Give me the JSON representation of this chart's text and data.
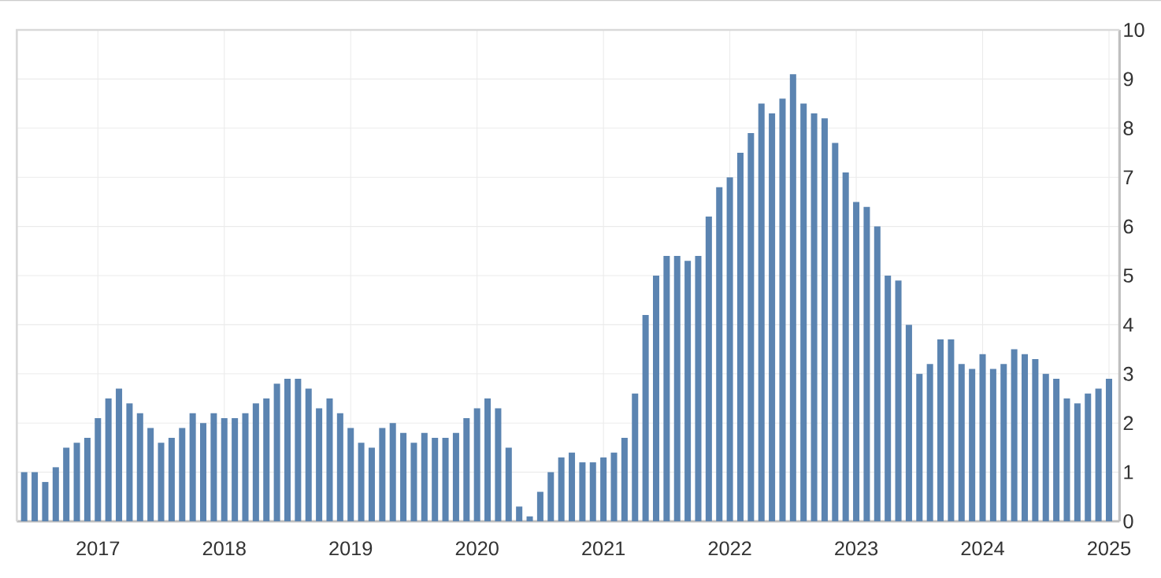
{
  "chart_data": {
    "type": "bar",
    "x": [
      "2016-06",
      "2016-07",
      "2016-08",
      "2016-09",
      "2016-10",
      "2016-11",
      "2016-12",
      "2017-01",
      "2017-02",
      "2017-03",
      "2017-04",
      "2017-05",
      "2017-06",
      "2017-07",
      "2017-08",
      "2017-09",
      "2017-10",
      "2017-11",
      "2017-12",
      "2018-01",
      "2018-02",
      "2018-03",
      "2018-04",
      "2018-05",
      "2018-06",
      "2018-07",
      "2018-08",
      "2018-09",
      "2018-10",
      "2018-11",
      "2018-12",
      "2019-01",
      "2019-02",
      "2019-03",
      "2019-04",
      "2019-05",
      "2019-06",
      "2019-07",
      "2019-08",
      "2019-09",
      "2019-10",
      "2019-11",
      "2019-12",
      "2020-01",
      "2020-02",
      "2020-03",
      "2020-04",
      "2020-05",
      "2020-06",
      "2020-07",
      "2020-08",
      "2020-09",
      "2020-10",
      "2020-11",
      "2020-12",
      "2021-01",
      "2021-02",
      "2021-03",
      "2021-04",
      "2021-05",
      "2021-06",
      "2021-07",
      "2021-08",
      "2021-09",
      "2021-10",
      "2021-11",
      "2021-12",
      "2022-01",
      "2022-02",
      "2022-03",
      "2022-04",
      "2022-05",
      "2022-06",
      "2022-07",
      "2022-08",
      "2022-09",
      "2022-10",
      "2022-11",
      "2022-12",
      "2023-01",
      "2023-02",
      "2023-03",
      "2023-04",
      "2023-05",
      "2023-06",
      "2023-07",
      "2023-08",
      "2023-09",
      "2023-10",
      "2023-11",
      "2023-12",
      "2024-01",
      "2024-02",
      "2024-03",
      "2024-04",
      "2024-05",
      "2024-06",
      "2024-07",
      "2024-08",
      "2024-09",
      "2024-10",
      "2024-11",
      "2024-12",
      "2025-01"
    ],
    "values": [
      1.0,
      1.0,
      0.8,
      1.1,
      1.5,
      1.6,
      1.7,
      2.1,
      2.5,
      2.7,
      2.4,
      2.2,
      1.9,
      1.6,
      1.7,
      1.9,
      2.2,
      2.0,
      2.2,
      2.1,
      2.1,
      2.2,
      2.4,
      2.5,
      2.8,
      2.9,
      2.9,
      2.7,
      2.3,
      2.5,
      2.2,
      1.9,
      1.6,
      1.5,
      1.9,
      2.0,
      1.8,
      1.6,
      1.8,
      1.7,
      1.7,
      1.8,
      2.1,
      2.3,
      2.5,
      2.3,
      1.5,
      0.3,
      0.1,
      0.6,
      1.0,
      1.3,
      1.4,
      1.2,
      1.2,
      1.3,
      1.4,
      1.7,
      2.6,
      4.2,
      5.0,
      5.4,
      5.4,
      5.3,
      5.4,
      6.2,
      6.8,
      7.0,
      7.5,
      7.9,
      8.5,
      8.3,
      8.6,
      9.1,
      8.5,
      8.3,
      8.2,
      7.7,
      7.1,
      6.5,
      6.4,
      6.0,
      5.0,
      4.9,
      4.0,
      3.0,
      3.2,
      3.7,
      3.7,
      3.2,
      3.1,
      3.4,
      3.1,
      3.2,
      3.5,
      3.4,
      3.3,
      3.0,
      2.9,
      2.5,
      2.4,
      2.6,
      2.7,
      2.9
    ],
    "color": "#5b84b1",
    "xlim": [
      "2016-05-10",
      "2025-02-01"
    ],
    "xticks": [
      "2017",
      "2018",
      "2019",
      "2020",
      "2021",
      "2022",
      "2023",
      "2024",
      "2025"
    ],
    "ylim": [
      0,
      10
    ],
    "yticks": [
      0,
      1,
      2,
      3,
      4,
      5,
      6,
      7,
      8,
      9,
      10
    ],
    "grid": true
  }
}
